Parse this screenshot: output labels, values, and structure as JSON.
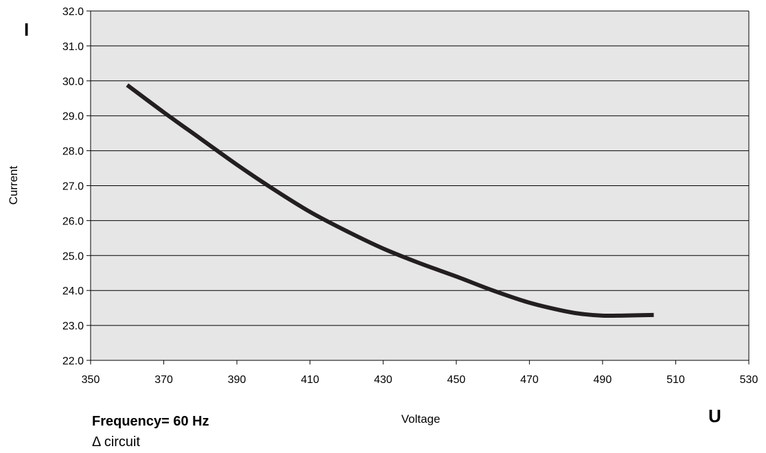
{
  "chart_data": {
    "type": "line",
    "title": "",
    "xlabel": "Voltage",
    "ylabel": "Current",
    "x_symbol": "U",
    "y_symbol": "I",
    "xlim": [
      350,
      530
    ],
    "ylim": [
      22.0,
      32.0
    ],
    "x_ticks": [
      "350",
      "370",
      "390",
      "410",
      "430",
      "450",
      "470",
      "490",
      "510",
      "530"
    ],
    "y_ticks": [
      "22.0",
      "23.0",
      "24.0",
      "25.0",
      "26.0",
      "27.0",
      "28.0",
      "29.0",
      "30.0",
      "31.0",
      "32.0"
    ],
    "grid": "horizontal",
    "plot_background": "#e6e6e6",
    "series": [
      {
        "name": "",
        "color": "#231f20",
        "points": [
          [
            360,
            29.88
          ],
          [
            370,
            29.1
          ],
          [
            380,
            28.35
          ],
          [
            390,
            27.6
          ],
          [
            400,
            26.9
          ],
          [
            410,
            26.25
          ],
          [
            420,
            25.7
          ],
          [
            430,
            25.2
          ],
          [
            440,
            24.78
          ],
          [
            450,
            24.4
          ],
          [
            460,
            24.0
          ],
          [
            470,
            23.65
          ],
          [
            480,
            23.4
          ],
          [
            485,
            23.32
          ],
          [
            490,
            23.28
          ],
          [
            495,
            23.28
          ],
          [
            504,
            23.3
          ]
        ]
      }
    ]
  },
  "notes": {
    "frequency": "Frequency= 60 Hz",
    "circuit": "Δ circuit"
  }
}
